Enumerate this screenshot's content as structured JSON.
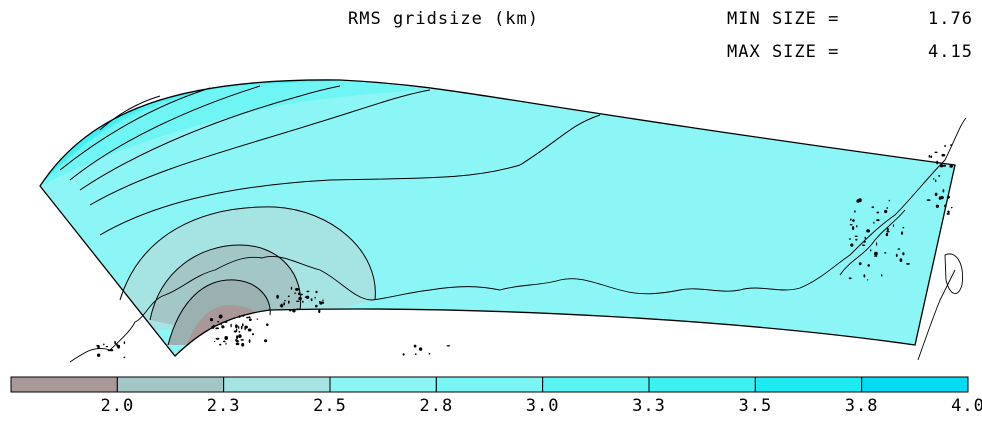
{
  "header": {
    "title": "RMS gridsize (km)",
    "min_label": "MIN SIZE =",
    "min_value": "1.76",
    "max_label": "MAX SIZE =",
    "max_value": "4.15"
  },
  "chart_data": {
    "type": "heatmap",
    "title": "RMS gridsize (km)",
    "min_size": 1.76,
    "max_size": 4.15,
    "levels": [
      "2.0",
      "2.3",
      "2.5",
      "2.8",
      "3.0",
      "3.3",
      "3.5",
      "3.8",
      "4.0"
    ],
    "colorbar_colors": [
      "#a89898",
      "#a3c6c6",
      "#a6e4e4",
      "#8cf5f5",
      "#7af5f5",
      "#5af4f4",
      "#3ff0f0",
      "#1eeaf2",
      "#05dcf4"
    ]
  }
}
